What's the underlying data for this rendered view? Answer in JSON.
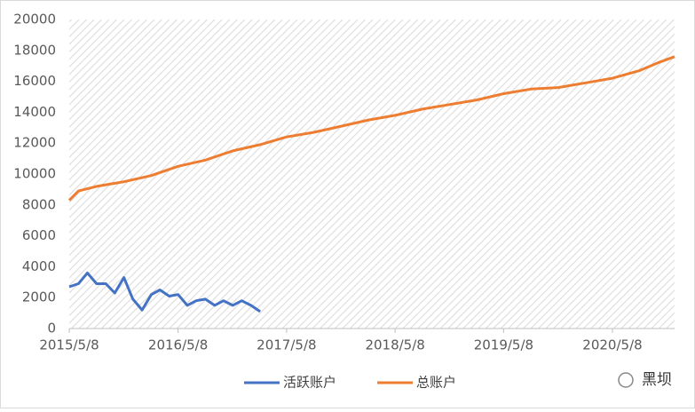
{
  "chart_data": {
    "type": "line",
    "xlim": [
      "2015/5/8",
      "2020/12/3"
    ],
    "xticks": [
      "2015/5/8",
      "2016/5/8",
      "2017/5/8",
      "2018/5/8",
      "2019/5/8",
      "2020/5/8"
    ],
    "ylim": [
      0,
      20000
    ],
    "yticks": [
      0,
      2000,
      4000,
      6000,
      8000,
      10000,
      12000,
      14000,
      16000,
      18000,
      20000
    ],
    "grid": false,
    "legend": "bottom",
    "watermark": "黑坝",
    "series": [
      {
        "name": "活跃账户",
        "color": "#4472c4",
        "x": [
          "2015/5/8",
          "2015/6/8",
          "2015/7/8",
          "2015/8/8",
          "2015/9/8",
          "2015/10/8",
          "2015/11/8",
          "2015/12/8",
          "2016/1/8",
          "2016/2/8",
          "2016/3/8",
          "2016/4/8",
          "2016/5/8",
          "2016/6/8",
          "2016/7/8",
          "2016/8/8",
          "2016/9/8",
          "2016/10/8",
          "2016/11/8",
          "2016/12/8",
          "2017/1/8",
          "2017/2/8"
        ],
        "values": [
          2700,
          2900,
          3600,
          2900,
          2900,
          2300,
          3300,
          1900,
          1200,
          2200,
          2500,
          2100,
          2200,
          1500,
          1800,
          1900,
          1500,
          1800,
          1500,
          1800,
          1500,
          1100
        ]
      },
      {
        "name": "总账户",
        "color": "#ed7d31",
        "x": [
          "2015/5/8",
          "2015/6/8",
          "2015/8/8",
          "2015/11/8",
          "2016/2/8",
          "2016/5/8",
          "2016/8/8",
          "2016/11/8",
          "2017/2/8",
          "2017/5/8",
          "2017/8/8",
          "2017/11/8",
          "2018/2/8",
          "2018/5/8",
          "2018/8/8",
          "2018/11/8",
          "2019/2/8",
          "2019/5/8",
          "2019/8/8",
          "2019/11/8",
          "2020/2/8",
          "2020/5/8",
          "2020/8/8",
          "2020/10/8",
          "2020/12/3"
        ],
        "values": [
          8300,
          8900,
          9200,
          9500,
          9900,
          10500,
          10900,
          11500,
          11900,
          12400,
          12700,
          13100,
          13500,
          13800,
          14200,
          14500,
          14800,
          15200,
          15500,
          15600,
          15900,
          16200,
          16700,
          17200,
          17600
        ]
      }
    ]
  }
}
